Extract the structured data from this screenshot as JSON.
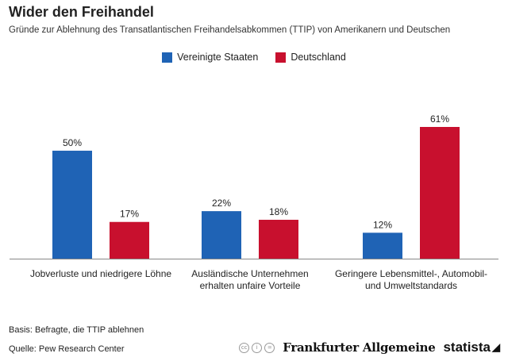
{
  "header": {
    "title": "Wider den Freihandel",
    "subtitle": "Gründe zur Ablehnung des Transatlantischen Freihandelsabkommen (TTIP) von Amerikanern und Deutschen"
  },
  "colors": {
    "us": "#1f63b5",
    "de": "#c8102e",
    "axis": "#888888"
  },
  "chart_data": {
    "type": "bar",
    "title": "Wider den Freihandel",
    "categories": [
      [
        "Jobverluste und niedrigere Löhne"
      ],
      [
        "Ausländische Unternehmen",
        "erhalten unfaire Vorteile"
      ],
      [
        "Geringere Lebensmittel-, Automobil-",
        "und Umweltstandards"
      ]
    ],
    "series": [
      {
        "name": "Vereinigte Staaten",
        "values": [
          50,
          22,
          12
        ],
        "labels": [
          "50%",
          "22%",
          "12%"
        ]
      },
      {
        "name": "Deutschland",
        "values": [
          17,
          18,
          61
        ],
        "labels": [
          "17%",
          "18%",
          "61%"
        ]
      }
    ],
    "xlabel": "",
    "ylabel": "",
    "ylim": [
      0,
      61
    ],
    "grid": false,
    "legend_position": "top-center"
  },
  "footer": {
    "basis": "Basis: Befragte, die TTIP ablehnen",
    "source": "Quelle: Pew Research Center",
    "cc_icons": [
      "cc-icon",
      "by-icon",
      "nd-icon"
    ],
    "brand1": "Frankfurter Allgemeine",
    "brand2": "statista"
  }
}
